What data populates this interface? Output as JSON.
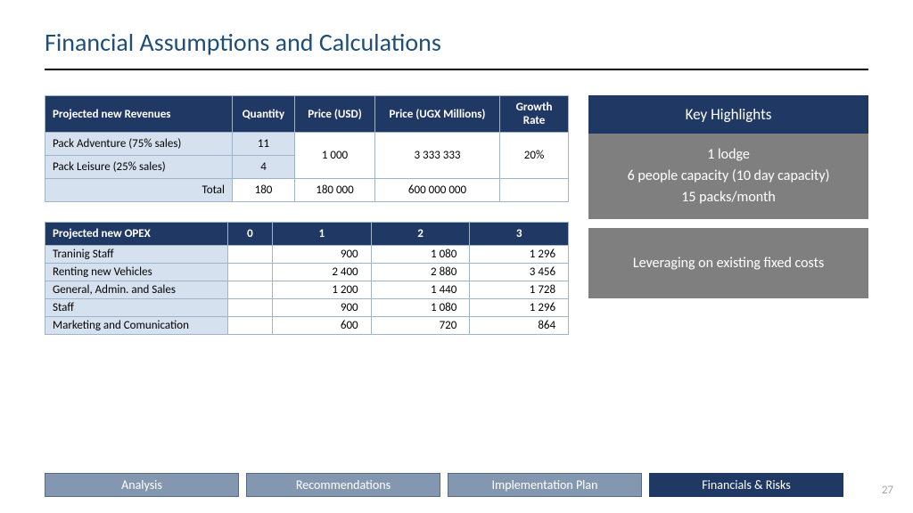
{
  "title": "Financial Assumptions and Calculations",
  "revenues": {
    "headers": [
      "Projected new Revenues",
      "Quantity",
      "Price (USD)",
      "Price (UGX Millions)",
      "Growth Rate"
    ],
    "rows": [
      {
        "label": "Pack Adventure (75% sales)",
        "qty": "11"
      },
      {
        "label": "Pack Leisure (25% sales)",
        "qty": "4"
      }
    ],
    "merged": {
      "price_usd": "1 000",
      "price_ugx": "3 333 333",
      "growth": "20%"
    },
    "total": {
      "label": "Total",
      "qty": "180",
      "price_usd": "180 000",
      "price_ugx": "600 000 000"
    }
  },
  "opex": {
    "headers": [
      "Projected new OPEX",
      "0",
      "1",
      "2",
      "3"
    ],
    "rows": [
      {
        "label": "Traninig Staff",
        "v": [
          "",
          "900",
          "1 080",
          "1 296"
        ]
      },
      {
        "label": "Renting new Vehicles",
        "v": [
          "",
          "2 400",
          "2 880",
          "3 456"
        ]
      },
      {
        "label": "General, Admin. and Sales",
        "v": [
          "",
          "1 200",
          "1 440",
          "1 728"
        ]
      },
      {
        "label": "Staff",
        "v": [
          "",
          "900",
          "1 080",
          "1 296"
        ]
      },
      {
        "label": "Marketing and Comunication",
        "v": [
          "",
          "600",
          "720",
          "864"
        ]
      }
    ]
  },
  "highlights": {
    "title": "Key Highlights",
    "lines": [
      "1 lodge",
      "6 people capacity (10 day capacity)",
      "15 packs/month"
    ],
    "note": "Leveraging on existing fixed costs"
  },
  "nav": [
    "Analysis",
    "Recommendations",
    "Implementation Plan",
    "Financials & Risks"
  ],
  "active_nav": 3,
  "page": "27",
  "colors": {
    "title": "#1f4e79",
    "dark": "#1f3864",
    "light": "#d6e1ef",
    "grey": "#7f7f7f",
    "nav_inactive": "#8497b0"
  }
}
